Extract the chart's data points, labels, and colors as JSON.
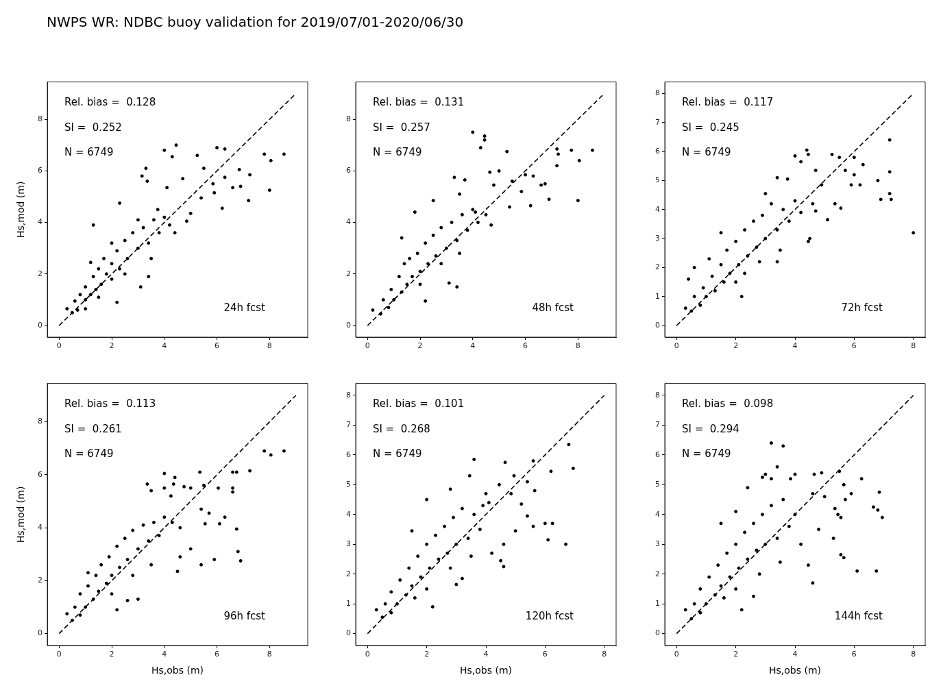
{
  "chart_data": [
    {
      "type": "scatter",
      "title": "NWPS WR: NDBC buoy validation for 2019/07/01-2020/06/30",
      "ylabel": "Hs,mod (m)",
      "xlim": [
        -0.45,
        9.45
      ],
      "ylim": [
        -0.45,
        9.45
      ],
      "xticks": [
        0,
        2,
        4,
        6,
        8
      ],
      "yticks": [
        0,
        2,
        4,
        6,
        8
      ],
      "annotations": [
        "Rel. bias =  0.128",
        "SI =  0.252",
        "N = 6749",
        "24h fcst"
      ],
      "series": [
        {
          "type": "scatter",
          "marker": "circle",
          "color": "#000000",
          "x": [
            4.0,
            4.3,
            4.45,
            6.0,
            6.3,
            7.8,
            8.05,
            8.55,
            5.25,
            3.3,
            3.15,
            3.35,
            8.0,
            7.2,
            6.85,
            7.25,
            6.6,
            6.9,
            6.2,
            5.85,
            5.4,
            5.5,
            6.3,
            5.9,
            4.7,
            4.1,
            3.75,
            5.0,
            4.85,
            4.4,
            1.3,
            2.3,
            1.2,
            3.1,
            3.4,
            2.2,
            0.3,
            0.5,
            0.6,
            0.7,
            0.8,
            1.0,
            1.0,
            1.2,
            1.3,
            1.4,
            1.5,
            1.6,
            1.7,
            1.8,
            2.0,
            2.0,
            2.2,
            2.3,
            2.5,
            2.6,
            2.8,
            3.0,
            3.2,
            3.4,
            3.6,
            3.8,
            4.0,
            4.2,
            1.0,
            1.5,
            2.5,
            3.5,
            2.0,
            3.0
          ],
          "values": [
            6.8,
            6.55,
            7.0,
            6.9,
            6.85,
            6.65,
            6.4,
            6.65,
            6.6,
            6.1,
            5.8,
            5.6,
            5.25,
            4.85,
            6.05,
            5.85,
            5.35,
            5.4,
            4.55,
            5.5,
            4.95,
            6.1,
            5.75,
            5.15,
            5.7,
            5.35,
            4.5,
            4.35,
            4.05,
            3.6,
            3.9,
            4.75,
            2.45,
            1.5,
            1.9,
            0.9,
            0.65,
            0.5,
            0.95,
            0.6,
            1.2,
            1.0,
            1.5,
            1.2,
            1.9,
            1.4,
            2.2,
            1.6,
            2.6,
            2.0,
            2.4,
            1.8,
            2.9,
            2.2,
            3.3,
            2.6,
            3.6,
            3.0,
            3.8,
            3.2,
            4.1,
            3.6,
            4.2,
            3.9,
            0.65,
            1.1,
            2.0,
            2.6,
            3.2,
            4.1
          ]
        },
        {
          "type": "line",
          "marker": "none",
          "line_style": "dashed",
          "color": "#000000",
          "x": [
            0,
            9
          ],
          "values": [
            0,
            9
          ]
        }
      ]
    },
    {
      "type": "scatter",
      "xlim": [
        -0.45,
        9.45
      ],
      "ylim": [
        -0.45,
        9.45
      ],
      "xticks": [
        0,
        2,
        4,
        6,
        8
      ],
      "yticks": [
        0,
        2,
        4,
        6,
        8
      ],
      "annotations": [
        "Rel. bias =  0.131",
        "SI =  0.257",
        "N = 6749",
        "48h fcst"
      ],
      "series": [
        {
          "type": "scatter",
          "marker": "circle",
          "color": "#000000",
          "x": [
            4.0,
            4.45,
            4.45,
            4.3,
            5.3,
            7.2,
            7.25,
            7.75,
            8.55,
            8.05,
            7.2,
            6.75,
            6.6,
            6.9,
            8.0,
            6.2,
            5.85,
            6.0,
            6.3,
            5.5,
            5.4,
            4.65,
            5.0,
            3.3,
            3.7,
            3.5,
            4.8,
            4.1,
            1.8,
            2.5,
            3.1,
            2.2,
            3.4,
            0.2,
            0.5,
            0.6,
            0.8,
            0.9,
            1.0,
            1.2,
            1.3,
            1.4,
            1.5,
            1.6,
            1.7,
            1.9,
            2.0,
            2.2,
            2.3,
            2.5,
            2.6,
            2.8,
            3.0,
            3.2,
            3.4,
            3.6,
            3.8,
            4.0,
            4.2,
            4.5,
            4.7,
            1.3,
            2.0,
            2.8,
            3.5
          ],
          "values": [
            7.5,
            7.35,
            7.2,
            6.9,
            6.75,
            6.85,
            6.65,
            6.8,
            6.8,
            6.4,
            6.2,
            5.5,
            5.45,
            4.9,
            4.85,
            4.65,
            5.2,
            5.85,
            5.8,
            5.6,
            4.6,
            5.95,
            6.0,
            5.75,
            5.65,
            5.1,
            5.45,
            4.4,
            4.4,
            4.85,
            1.65,
            0.95,
            1.5,
            0.6,
            0.45,
            1.0,
            0.7,
            1.4,
            1.0,
            1.9,
            1.3,
            2.4,
            1.6,
            2.6,
            1.9,
            2.8,
            2.1,
            3.2,
            2.4,
            3.5,
            2.7,
            3.8,
            3.0,
            4.0,
            3.3,
            4.3,
            3.7,
            4.5,
            4.0,
            4.3,
            3.9,
            3.4,
            1.6,
            2.4,
            2.8
          ]
        },
        {
          "type": "line",
          "marker": "none",
          "line_style": "dashed",
          "color": "#000000",
          "x": [
            0,
            9
          ],
          "values": [
            0,
            9
          ]
        }
      ]
    },
    {
      "type": "scatter",
      "xlim": [
        -0.4,
        8.4
      ],
      "ylim": [
        -0.4,
        8.4
      ],
      "xticks": [
        0,
        2,
        4,
        6,
        8
      ],
      "yticks": [
        0,
        1,
        2,
        3,
        4,
        5,
        6,
        7,
        8
      ],
      "annotations": [
        "Rel. bias =  0.117",
        "SI =  0.245",
        "N = 6749",
        "72h fcst"
      ],
      "series": [
        {
          "type": "scatter",
          "marker": "circle",
          "color": "#000000",
          "x": [
            7.2,
            8.0,
            7.2,
            7.2,
            7.25,
            6.9,
            6.8,
            6.3,
            6.2,
            6.0,
            5.9,
            6.0,
            5.5,
            5.25,
            5.7,
            5.35,
            5.55,
            5.1,
            4.45,
            4.5,
            4.0,
            4.4,
            4.45,
            4.2,
            4.7,
            3.75,
            3.4,
            3.0,
            4.6,
            4.9,
            4.7,
            2.2,
            2.3,
            3.4,
            0.4,
            0.6,
            1.1,
            0.3,
            0.5,
            0.6,
            0.8,
            0.9,
            1.0,
            1.2,
            1.3,
            1.5,
            1.6,
            1.7,
            1.8,
            2.0,
            2.1,
            2.3,
            2.4,
            2.6,
            2.7,
            2.9,
            3.0,
            3.2,
            3.4,
            3.6,
            3.8,
            4.0,
            4.2,
            1.5,
            2.0,
            2.8,
            3.5
          ],
          "values": [
            6.4,
            3.2,
            5.3,
            4.55,
            4.35,
            4.35,
            5.0,
            5.55,
            4.85,
            5.2,
            4.85,
            5.8,
            5.8,
            5.9,
            5.35,
            4.2,
            4.05,
            3.65,
            2.9,
            3.0,
            5.85,
            6.05,
            5.9,
            5.65,
            5.35,
            5.05,
            5.1,
            4.55,
            4.2,
            4.85,
            3.95,
            1.0,
            1.8,
            2.2,
            1.6,
            2.0,
            2.3,
            0.6,
            0.5,
            1.0,
            0.7,
            1.3,
            1.0,
            1.7,
            1.2,
            2.1,
            1.5,
            2.6,
            1.8,
            2.9,
            2.1,
            3.3,
            2.4,
            3.6,
            2.7,
            3.8,
            3.0,
            4.2,
            3.3,
            4.0,
            3.6,
            4.3,
            3.9,
            3.2,
            1.5,
            2.2,
            2.6
          ]
        },
        {
          "type": "line",
          "marker": "none",
          "line_style": "dashed",
          "color": "#000000",
          "x": [
            0,
            8
          ],
          "values": [
            0,
            8
          ]
        }
      ]
    },
    {
      "type": "scatter",
      "xlabel": "Hs,obs (m)",
      "ylabel": "Hs,mod (m)",
      "xlim": [
        -0.45,
        9.45
      ],
      "ylim": [
        -0.45,
        9.45
      ],
      "xticks": [
        0,
        2,
        4,
        6,
        8
      ],
      "yticks": [
        0,
        2,
        4,
        6,
        8
      ],
      "annotations": [
        "Rel. bias =  0.113",
        "SI =  0.261",
        "N = 6749",
        "96h fcst"
      ],
      "series": [
        {
          "type": "scatter",
          "marker": "circle",
          "color": "#000000",
          "x": [
            8.55,
            8.05,
            7.8,
            7.25,
            6.6,
            6.75,
            6.05,
            6.6,
            6.6,
            6.75,
            6.8,
            6.9,
            5.9,
            5.4,
            6.3,
            6.1,
            5.55,
            5.7,
            5.4,
            5.35,
            5.5,
            4.0,
            4.4,
            4.35,
            3.35,
            3.5,
            4.0,
            4.25,
            4.75,
            5.0,
            4.5,
            3.0,
            2.2,
            2.6,
            1.1,
            0.3,
            5.0,
            4.6,
            0.5,
            0.6,
            0.8,
            0.8,
            1.0,
            1.1,
            1.3,
            1.4,
            1.5,
            1.6,
            1.8,
            1.9,
            2.0,
            2.2,
            2.3,
            2.5,
            2.6,
            2.8,
            3.0,
            3.2,
            3.4,
            3.6,
            3.8,
            4.0,
            4.3,
            4.6,
            2.0,
            2.8,
            3.5
          ],
          "values": [
            6.9,
            6.75,
            6.9,
            6.15,
            6.1,
            6.1,
            5.5,
            5.5,
            5.35,
            3.95,
            3.1,
            2.75,
            2.8,
            2.6,
            4.4,
            4.15,
            4.15,
            4.55,
            4.7,
            6.1,
            5.6,
            6.05,
            5.9,
            5.65,
            5.65,
            5.4,
            5.5,
            5.2,
            5.55,
            5.5,
            2.35,
            1.3,
            0.9,
            1.25,
            2.3,
            0.75,
            3.2,
            2.9,
            0.5,
            1.0,
            0.7,
            1.5,
            1.0,
            1.8,
            1.3,
            2.2,
            1.6,
            2.6,
            1.9,
            2.9,
            2.2,
            3.3,
            2.5,
            3.6,
            2.8,
            3.9,
            3.2,
            4.1,
            3.5,
            4.2,
            3.7,
            4.4,
            4.2,
            4.0,
            1.5,
            2.2,
            2.6
          ]
        },
        {
          "type": "line",
          "marker": "none",
          "line_style": "dashed",
          "color": "#000000",
          "x": [
            0,
            9
          ],
          "values": [
            0,
            9
          ]
        }
      ]
    },
    {
      "type": "scatter",
      "xlabel": "Hs,obs (m)",
      "xlim": [
        -0.4,
        8.4
      ],
      "ylim": [
        -0.4,
        8.4
      ],
      "xticks": [
        0,
        2,
        4,
        6,
        8
      ],
      "yticks": [
        0,
        1,
        2,
        3,
        4,
        5,
        6,
        7,
        8
      ],
      "annotations": [
        "Rel. bias =  0.101",
        "SI =  0.268",
        "N = 6749",
        "120h fcst"
      ],
      "series": [
        {
          "type": "scatter",
          "marker": "circle",
          "color": "#000000",
          "x": [
            6.8,
            6.95,
            6.2,
            5.6,
            4.65,
            3.6,
            3.45,
            4.95,
            4.45,
            5.4,
            5.65,
            6.0,
            6.25,
            6.1,
            6.7,
            5.6,
            5.4,
            5.2,
            4.85,
            4.6,
            4.6,
            4.5,
            5.0,
            4.2,
            2.2,
            2.0,
            2.8,
            3.0,
            3.2,
            1.5,
            0.3,
            3.9,
            4.1,
            0.5,
            0.6,
            0.8,
            0.8,
            1.0,
            1.1,
            1.3,
            1.4,
            1.5,
            1.7,
            1.8,
            2.0,
            2.1,
            2.3,
            2.4,
            2.6,
            2.7,
            2.9,
            3.0,
            3.2,
            3.4,
            3.6,
            3.8,
            4.0,
            2.0,
            2.8,
            3.5,
            1.6
          ],
          "values": [
            6.35,
            5.55,
            5.45,
            5.8,
            5.75,
            5.85,
            5.3,
            5.3,
            5.0,
            5.1,
            4.8,
            3.7,
            3.7,
            3.15,
            3.0,
            3.6,
            3.95,
            4.35,
            4.7,
            3.0,
            2.25,
            2.45,
            3.45,
            2.7,
            0.9,
            4.5,
            4.85,
            1.65,
            1.85,
            3.45,
            0.8,
            4.3,
            4.4,
            0.55,
            1.0,
            0.7,
            1.4,
            1.0,
            1.8,
            1.3,
            2.2,
            1.6,
            2.6,
            1.9,
            3.0,
            2.2,
            3.3,
            2.5,
            3.6,
            2.7,
            3.9,
            3.0,
            4.2,
            3.2,
            4.0,
            3.5,
            4.7,
            1.5,
            2.2,
            2.6,
            1.2
          ]
        },
        {
          "type": "line",
          "marker": "none",
          "line_style": "dashed",
          "color": "#000000",
          "x": [
            0,
            8
          ],
          "values": [
            0,
            8
          ]
        }
      ]
    },
    {
      "type": "scatter",
      "xlabel": "Hs,obs (m)",
      "xlim": [
        -0.4,
        8.4
      ],
      "ylim": [
        -0.4,
        8.4
      ],
      "xticks": [
        0,
        2,
        4,
        6,
        8
      ],
      "yticks": [
        0,
        1,
        2,
        3,
        4,
        5,
        6,
        7,
        8
      ],
      "annotations": [
        "Rel. bias =  0.098",
        "SI =  0.294",
        "N = 6749",
        "144h fcst"
      ],
      "series": [
        {
          "type": "scatter",
          "marker": "circle",
          "color": "#000000",
          "x": [
            3.2,
            3.6,
            3.4,
            3.0,
            2.9,
            3.2,
            3.85,
            4.0,
            4.65,
            4.9,
            5.5,
            6.25,
            5.65,
            5.9,
            5.7,
            6.85,
            6.65,
            6.8,
            6.95,
            5.35,
            5.45,
            5.55,
            5.3,
            5.55,
            5.65,
            6.1,
            6.75,
            4.6,
            4.45,
            4.8,
            2.2,
            2.6,
            1.5,
            0.3,
            2.0,
            2.4,
            4.6,
            5.0,
            0.5,
            0.6,
            0.8,
            0.8,
            1.0,
            1.1,
            1.3,
            1.4,
            1.5,
            1.7,
            1.8,
            2.0,
            2.1,
            2.3,
            2.4,
            2.6,
            2.7,
            2.9,
            3.0,
            3.2,
            3.4,
            3.6,
            3.8,
            4.0,
            4.2,
            2.0,
            2.8,
            3.5,
            1.6
          ],
          "values": [
            6.4,
            6.3,
            5.6,
            5.35,
            5.25,
            5.2,
            5.2,
            5.35,
            5.35,
            5.4,
            5.45,
            5.2,
            5.0,
            4.7,
            4.5,
            4.75,
            4.25,
            4.15,
            3.9,
            4.2,
            4.0,
            3.9,
            3.2,
            2.65,
            2.55,
            2.1,
            2.1,
            1.7,
            2.3,
            3.5,
            0.8,
            1.25,
            3.7,
            0.8,
            4.1,
            4.9,
            4.7,
            4.6,
            0.5,
            1.0,
            0.7,
            1.5,
            1.0,
            1.9,
            1.3,
            2.3,
            1.6,
            2.7,
            1.9,
            3.0,
            2.2,
            3.4,
            2.5,
            3.7,
            2.8,
            4.0,
            3.0,
            4.3,
            3.2,
            4.5,
            3.6,
            4.0,
            3.0,
            1.5,
            2.0,
            2.4,
            1.2
          ]
        },
        {
          "type": "line",
          "marker": "none",
          "line_style": "dashed",
          "color": "#000000",
          "x": [
            0,
            8
          ],
          "values": [
            0,
            8
          ]
        }
      ]
    }
  ]
}
